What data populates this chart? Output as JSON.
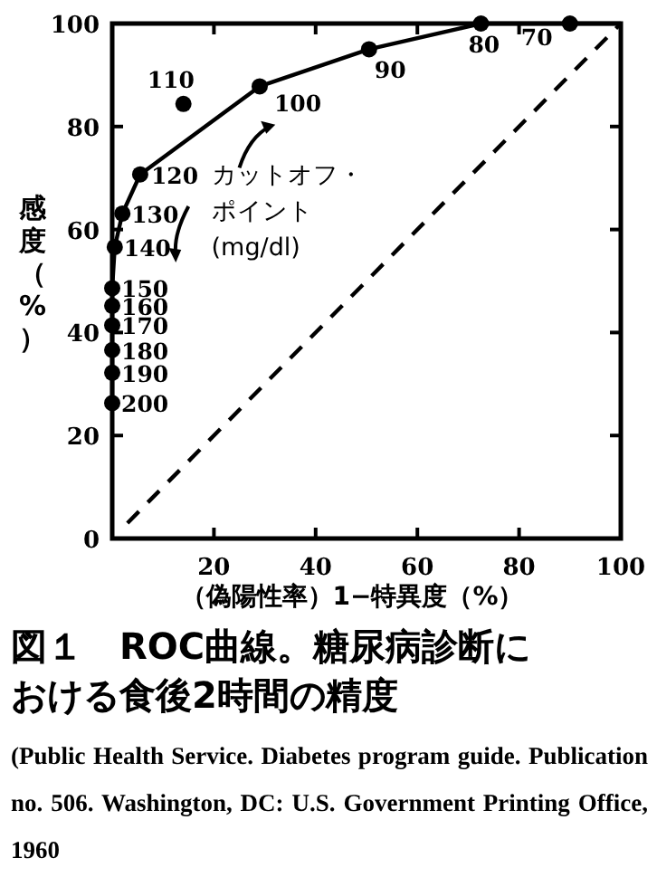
{
  "chart_data": {
    "type": "scatter",
    "title": "図１　ROC曲線。糖尿病診断における食後2時間の精度",
    "xlabel": "（偽陽性率）1−特異度（%）",
    "ylabel": "感度（%）",
    "xlim": [
      0,
      100
    ],
    "ylim": [
      0,
      100
    ],
    "xticks": [
      {
        "value": 0,
        "label": null
      },
      20,
      40,
      60,
      80,
      100
    ],
    "yticks": [
      0,
      20,
      40,
      60,
      80,
      100
    ],
    "grid": false,
    "series": [
      {
        "type": "line",
        "color": "#000000",
        "line_style": "solid",
        "marker": "none",
        "x": [
          0,
          0,
          0.5,
          2,
          5.5,
          29,
          50.5,
          72.5,
          90,
          100
        ],
        "values": [
          26.3,
          48.6,
          56.6,
          63.1,
          70.7,
          87.8,
          95,
          100,
          100,
          100
        ]
      },
      {
        "type": "line",
        "color": "#000000",
        "line_style": "dashed",
        "marker": "none",
        "x": [
          3,
          100
        ],
        "values": [
          3,
          100
        ]
      },
      {
        "type": "scatter",
        "color": "#000000",
        "marker": "circle",
        "x": [
          0,
          0,
          0,
          0,
          0,
          0,
          0.5,
          2,
          5.5,
          14,
          29,
          50.5,
          72.5,
          90
        ],
        "values": [
          26.3,
          32.2,
          36.6,
          41.4,
          45.2,
          48.6,
          56.6,
          63.1,
          70.7,
          84.4,
          87.8,
          95,
          100,
          100
        ]
      }
    ],
    "annotations": [
      {
        "text": "200",
        "x": 0,
        "y": 26.3
      },
      {
        "text": "190",
        "x": 0,
        "y": 32.2
      },
      {
        "text": "180",
        "x": 0,
        "y": 36.6
      },
      {
        "text": "170",
        "x": 0,
        "y": 41.4
      },
      {
        "text": "160",
        "x": 0,
        "y": 45.2
      },
      {
        "text": "150",
        "x": 0,
        "y": 48.6
      },
      {
        "text": "140",
        "x": 0.5,
        "y": 56.6
      },
      {
        "text": "130",
        "x": 2,
        "y": 63.1
      },
      {
        "text": "120",
        "x": 5.5,
        "y": 70.7
      },
      {
        "text": "110",
        "x": 14,
        "y": 84.4
      },
      {
        "text": "100",
        "x": 29,
        "y": 87.8
      },
      {
        "text": "90",
        "x": 50.5,
        "y": 95
      },
      {
        "text": "80",
        "x": 72.5,
        "y": 100
      },
      {
        "text": "70",
        "x": 90,
        "y": 100
      },
      "カットオフ・ポイント (mg/dl)",
      "(Public Health Service. Diabetes program guide. Publication no. 506. Washington, DC: U.S. Government Printing Office, 1960"
    ]
  }
}
